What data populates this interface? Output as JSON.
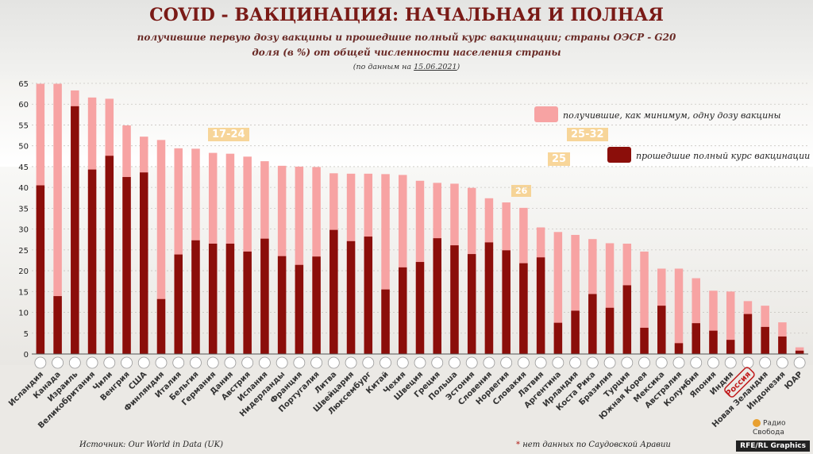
{
  "title": "COVID - ВАКЦИНАЦИЯ: НАЧАЛЬНАЯ И ПОЛНАЯ",
  "subtitle1": "получившие первую дозу вакцины и прошедшие полный курс вакцинации; страны ОЭСР - G20",
  "subtitle2": "доля (в %) от общей численности населения страны",
  "note_prefix": "(по данным на ",
  "note_date": "15.06.2021",
  "note_suffix": ")",
  "legend": {
    "first_dose": "получившие, как минимум, одну дозу вакцины",
    "full": "прошедшие полный курс вакцинации"
  },
  "background_tags": [
    "17-24",
    "25",
    "25-32",
    "26"
  ],
  "source": "Источник: Our World in Data (UK)",
  "footnote_star": "*",
  "footnote": "нет данных по Саудовской Аравии",
  "radio_name": "Радио Свобода",
  "credit": "RFE/RL Graphics",
  "colors": {
    "first_dose": "#f7a3a3",
    "full": "#8b0e0a",
    "axis_text": "#222222",
    "title": "#7a1a16"
  },
  "chart_data": {
    "type": "bar",
    "stacked_overlay": true,
    "ylim": [
      0,
      65
    ],
    "yticks": [
      0,
      5,
      10,
      15,
      20,
      25,
      30,
      35,
      40,
      45,
      50,
      55,
      60,
      65
    ],
    "grid": true,
    "legend_position": "top-right",
    "highlight": "Россия",
    "categories": [
      "Исландия",
      "Канада",
      "Израиль",
      "Великобритания",
      "Чили",
      "Венгрия",
      "США",
      "Финляндия",
      "Италия",
      "Бельгия",
      "Германия",
      "Дания",
      "Австрия",
      "Испания",
      "Нидерланды",
      "Франция",
      "Португалия",
      "Литва",
      "Швейцария",
      "Люксембург",
      "Китай",
      "Чехия",
      "Швеция",
      "Греция",
      "Польша",
      "Эстония",
      "Словения",
      "Норвегия",
      "Словакия",
      "Латвия",
      "Аргентина",
      "Ирландия",
      "Коста Рика",
      "Бразилия",
      "Турция",
      "Южная Корея",
      "Мексика",
      "Австралия",
      "Колумбия",
      "Япония",
      "Индия",
      "Россия",
      "Новая Зеландия",
      "Индонезия",
      "ЮАР"
    ],
    "series": [
      {
        "name": "получившие, как минимум, одну дозу вакцины",
        "values": [
          64.9,
          64.9,
          63.3,
          61.6,
          61.3,
          54.9,
          52.2,
          51.4,
          49.4,
          49.3,
          48.3,
          48.1,
          47.4,
          46.3,
          45.2,
          45.0,
          44.9,
          43.4,
          43.3,
          43.3,
          43.2,
          43.0,
          41.6,
          41.1,
          40.9,
          39.9,
          37.4,
          36.4,
          35.1,
          30.4,
          29.3,
          28.6,
          27.6,
          26.6,
          26.5,
          24.6,
          20.5,
          20.5,
          18.2,
          15.2,
          15.0,
          12.7,
          11.6,
          7.6,
          1.6
        ]
      },
      {
        "name": "прошедшие полный курс вакцинации",
        "values": [
          40.5,
          13.9,
          59.5,
          44.3,
          47.6,
          42.5,
          43.6,
          13.2,
          23.9,
          27.3,
          26.5,
          26.5,
          24.6,
          27.7,
          23.5,
          21.4,
          23.4,
          29.8,
          27.1,
          28.2,
          15.5,
          20.8,
          22.1,
          27.8,
          26.1,
          24.0,
          26.8,
          24.9,
          21.8,
          23.2,
          7.5,
          10.4,
          14.4,
          11.1,
          16.5,
          6.3,
          11.6,
          2.6,
          7.4,
          5.6,
          3.4,
          9.6,
          6.5,
          4.2,
          0.8
        ]
      }
    ]
  }
}
